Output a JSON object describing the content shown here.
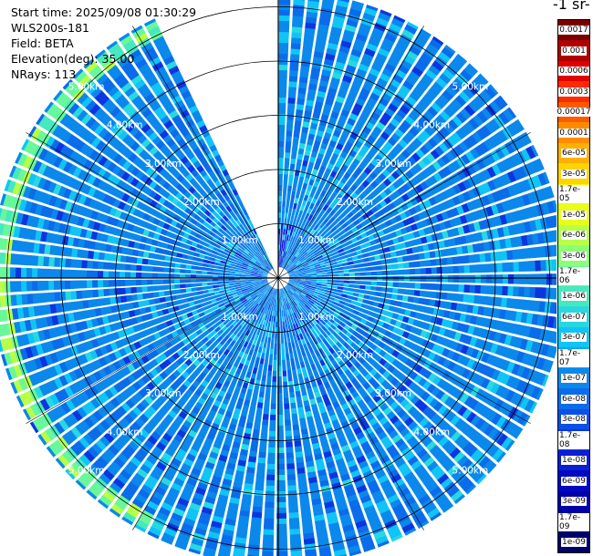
{
  "info": {
    "start_time": "Start time: 2025/09/08 01:30:29",
    "instrument": "WLS200s-181",
    "field": "Field: BETA",
    "elevation": "Elevation(deg): 35.00",
    "nrays": "NRays: 113"
  },
  "colorbar": {
    "units_label": "-1 sr-",
    "labels": [
      "0.0017",
      "0.001",
      "0.0006",
      "0.0003",
      "0.00017",
      "0.0001",
      "6e-05",
      "3e-05",
      "1.7e-05",
      "1e-05",
      "6e-06",
      "3e-06",
      "1.7e-06",
      "1e-06",
      "6e-07",
      "3e-07",
      "1.7e-07",
      "1e-07",
      "6e-08",
      "3e-08",
      "1.7e-08",
      "1e-08",
      "6e-09",
      "3e-09",
      "1.7e-09",
      "1e-09"
    ],
    "colors": [
      "#7a0000",
      "#b00000",
      "#e00000",
      "#ff2a00",
      "#ff5a00",
      "#ff8c00",
      "#ffb000",
      "#ffd400",
      "#fff200",
      "#e8ff1a",
      "#b8ff48",
      "#8cff74",
      "#68f79a",
      "#46e8be",
      "#28d8e0",
      "#10c4f6",
      "#0aa6f4",
      "#0a88ec",
      "#0a6cea",
      "#0a50e6",
      "#0a36e0",
      "#0a1ed4",
      "#0008c4",
      "#0000aa",
      "#000088",
      "#00006a"
    ]
  },
  "chart_data": {
    "type": "heatmap",
    "projection": "polar",
    "title": "",
    "field": "BETA",
    "elevation_deg": 35.0,
    "nrays": 113,
    "gap_azimuth_deg": [
      335,
      360
    ],
    "range_rings_km": [
      1,
      2,
      3,
      4,
      5
    ],
    "range_ring_labels": [
      "1.00km",
      "2.00km",
      "3.00km",
      "4.00km",
      "5.00km"
    ],
    "max_range_km": 5.3,
    "spoke_step_deg": 30,
    "high_return_band": {
      "range_km": [
        4.9,
        5.15
      ],
      "azimuth_deg": [
        205,
        335
      ]
    },
    "typical_value_range": [
      "6e-08",
      "3e-08"
    ],
    "grid": true
  }
}
